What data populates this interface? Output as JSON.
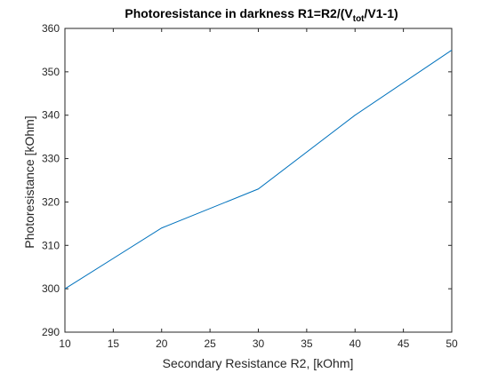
{
  "chart_data": {
    "type": "line",
    "title": {
      "main": "Photoresistance in darkness R1=R2/(V",
      "sub": "tot",
      "end": "/V1-1)"
    },
    "xlabel": "Secondary Resistance R2, [kOhm]",
    "ylabel": "Photoresistance [kOhm]",
    "xlim": [
      10,
      50
    ],
    "ylim": [
      290,
      360
    ],
    "xticks": [
      10,
      15,
      20,
      25,
      30,
      35,
      40,
      45,
      50
    ],
    "yticks": [
      290,
      300,
      310,
      320,
      330,
      340,
      350,
      360
    ],
    "grid": false,
    "series": [
      {
        "x": [
          10,
          20,
          30,
          40,
          50
        ],
        "y": [
          300,
          314,
          323,
          340,
          355
        ],
        "color": "#0072bd"
      }
    ]
  }
}
